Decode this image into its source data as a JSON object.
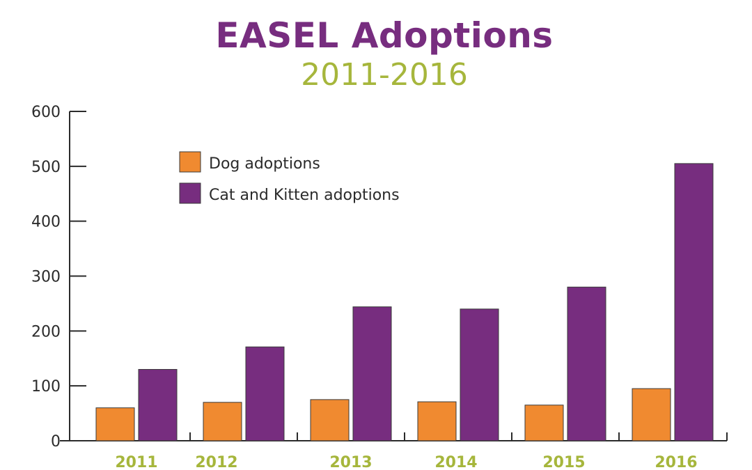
{
  "chart_data": {
    "type": "bar",
    "title": "EASEL Adoptions",
    "subtitle": "2011-2016",
    "xlabel": "",
    "ylabel": "",
    "categories": [
      "2011",
      "2012",
      "2013",
      "2014",
      "2015",
      "2016"
    ],
    "series": [
      {
        "name": "Dog adoptions",
        "color": "#F08A30",
        "values": [
          60,
          70,
          75,
          71,
          65,
          95
        ]
      },
      {
        "name": "Cat and Kitten adoptions",
        "color": "#772D7F",
        "values": [
          130,
          171,
          244,
          240,
          280,
          505
        ]
      }
    ],
    "ylim": [
      0,
      600
    ],
    "yticks": [
      0,
      100,
      200,
      300,
      400,
      500,
      600
    ],
    "ytick_labels": [
      "0",
      "100",
      "200",
      "300",
      "400",
      "500",
      "600"
    ],
    "grid": false,
    "legend_position": "top-left"
  },
  "colors": {
    "title": "#772D7F",
    "subtitle": "#A6B63C",
    "category_labels": "#A6B63C",
    "axis": "#2b2b2b"
  }
}
